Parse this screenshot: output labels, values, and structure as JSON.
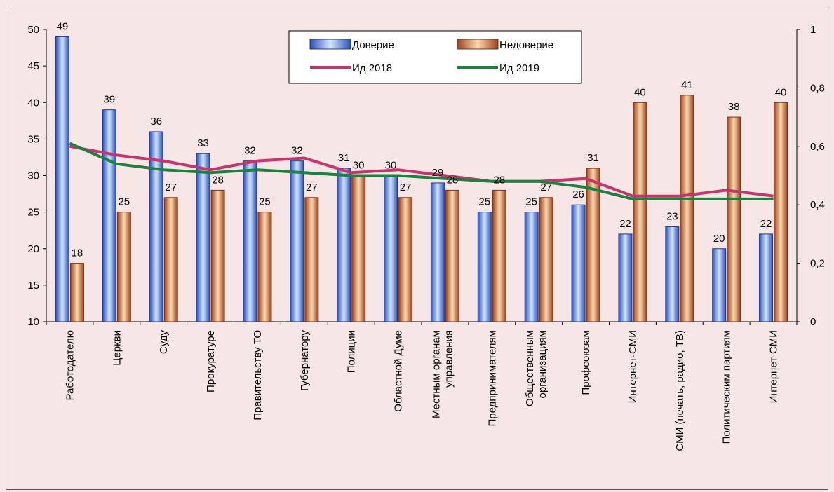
{
  "chart_data": {
    "type": "bar",
    "categories": [
      [
        "Работодателю"
      ],
      [
        "Церкви"
      ],
      [
        "Суду"
      ],
      [
        "Прокуратуре"
      ],
      [
        "Правительству ТО"
      ],
      [
        "Губернатору"
      ],
      [
        "Полиции"
      ],
      [
        "Областной Думе"
      ],
      [
        "Местным органам",
        "управления"
      ],
      [
        "Предпринимателям"
      ],
      [
        "Общественным",
        "организациям"
      ],
      [
        "Профсоюзам"
      ],
      [
        "Интернет-СМИ"
      ],
      [
        "СМИ (печать, радио, ТВ)"
      ],
      [
        "Политическим партиям"
      ],
      [
        "Интернет-СМИ"
      ]
    ],
    "series": [
      {
        "name": "Доверие",
        "kind": "bar",
        "axis": "left",
        "color": "#7aa6e0",
        "values": [
          49,
          39,
          36,
          33,
          32,
          32,
          31,
          30,
          29,
          25,
          25,
          26,
          22,
          23,
          20,
          22
        ]
      },
      {
        "name": "Недоверие",
        "kind": "bar",
        "axis": "left",
        "color": "#d98a58",
        "values": [
          18,
          25,
          27,
          28,
          25,
          27,
          30,
          27,
          28,
          28,
          27,
          31,
          40,
          41,
          38,
          40
        ]
      },
      {
        "name": "Ид 2018",
        "kind": "line",
        "axis": "right",
        "color": "#c8336e",
        "values": [
          0.6,
          0.57,
          0.55,
          0.52,
          0.55,
          0.56,
          0.51,
          0.52,
          0.5,
          0.48,
          0.48,
          0.49,
          0.43,
          0.43,
          0.45,
          0.43
        ]
      },
      {
        "name": "Ид 2019",
        "kind": "line",
        "axis": "right",
        "color": "#1d8040",
        "values": [
          0.61,
          0.54,
          0.52,
          0.51,
          0.52,
          0.51,
          0.5,
          0.5,
          0.49,
          0.48,
          0.48,
          0.46,
          0.42,
          0.42,
          0.42,
          0.42
        ]
      }
    ],
    "y_left": {
      "min": 10,
      "max": 50,
      "ticks": [
        "10",
        "15",
        "20",
        "25",
        "30",
        "35",
        "40",
        "45",
        "50"
      ]
    },
    "y_right": {
      "min": 0,
      "max": 1,
      "ticks": [
        "0",
        "0,2",
        "0,4",
        "0,6",
        "0,8",
        "1"
      ]
    },
    "legend_placement": "top-center",
    "grid": false
  }
}
